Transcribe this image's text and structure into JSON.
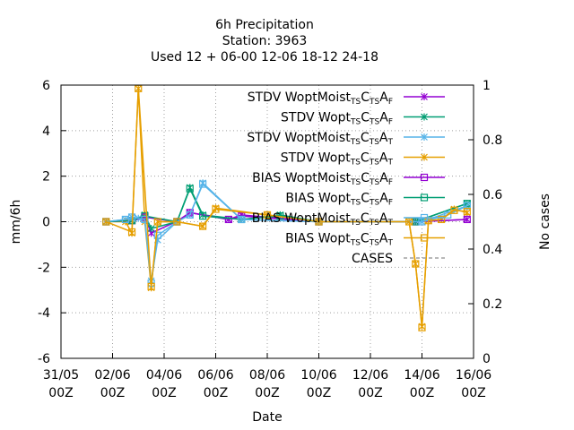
{
  "chart_data": {
    "type": "line",
    "title": [
      "6h Precipitation",
      "Station:     3963",
      "Used  12 + 06-00 12-06 18-12 24-18"
    ],
    "xlabel": "Date",
    "ylabel": "mm/6h",
    "y2label": "No cases",
    "ylim": [
      -6,
      6
    ],
    "y2lim": [
      0,
      1
    ],
    "xlim": [
      "2011-05-31T00:00",
      "2011-06-16T00:00"
    ],
    "x_ticks": [
      {
        "top": "31/05",
        "bottom": "00Z",
        "value": "2011-05-31T00:00"
      },
      {
        "top": "02/06",
        "bottom": "00Z",
        "value": "2011-06-02T00:00"
      },
      {
        "top": "04/06",
        "bottom": "00Z",
        "value": "2011-06-04T00:00"
      },
      {
        "top": "06/06",
        "bottom": "00Z",
        "value": "2011-06-06T00:00"
      },
      {
        "top": "08/06",
        "bottom": "00Z",
        "value": "2011-06-08T00:00"
      },
      {
        "top": "10/06",
        "bottom": "00Z",
        "value": "2011-06-10T00:00"
      },
      {
        "top": "12/06",
        "bottom": "00Z",
        "value": "2011-06-12T00:00"
      },
      {
        "top": "14/06",
        "bottom": "00Z",
        "value": "2011-06-14T00:00"
      },
      {
        "top": "16/06",
        "bottom": "00Z",
        "value": "2011-06-16T00:00"
      }
    ],
    "y_ticks": [
      "6",
      "4",
      "2",
      "0",
      "-2",
      "-4",
      "-6"
    ],
    "y2_ticks": [
      "1",
      "0.8",
      "0.6",
      "0.4",
      "0.2",
      "0"
    ],
    "grid": true,
    "legend_position": "top-right",
    "series": [
      {
        "name": "STDV WoptMoist",
        "sub1": "TS",
        "sub2": "TS",
        "sub3": "F",
        "color": "#9400d3",
        "marker": "x",
        "x": [
          "2011-06-01T18:00",
          "2011-06-02T18:00",
          "2011-06-03T06:00",
          "2011-06-03T12:00",
          "2011-06-04T12:00",
          "2011-06-05T00:00",
          "2011-06-06T12:00",
          "2011-06-07T00:00",
          "2011-06-10T00:00",
          "2011-06-13T18:00",
          "2011-06-15T18:00"
        ],
        "y": [
          0,
          0.05,
          0.2,
          -0.5,
          0.02,
          0.4,
          0.1,
          0.3,
          0,
          0,
          0.1
        ]
      },
      {
        "name": "STDV Wopt",
        "sub1": "TS",
        "sub2": "TS",
        "sub3": "F",
        "color": "#009e73",
        "marker": "x",
        "x": [
          "2011-06-01T18:00",
          "2011-06-02T18:00",
          "2011-06-03T06:00",
          "2011-06-03T12:00",
          "2011-06-04T12:00",
          "2011-06-05T00:00",
          "2011-06-05T12:00",
          "2011-06-07T00:00",
          "2011-06-08T12:00",
          "2011-06-10T00:00",
          "2011-06-13T18:00",
          "2011-06-15T18:00"
        ],
        "y": [
          0,
          0.05,
          0.3,
          -0.3,
          0,
          1.5,
          0.3,
          0.1,
          0.3,
          0,
          0,
          0.8
        ]
      },
      {
        "name": "STDV WoptMoist",
        "sub1": "TS",
        "sub2": "TS",
        "sub3": "T",
        "color": "#56b4e9",
        "marker": "x",
        "x": [
          "2011-06-01T18:00",
          "2011-06-02T12:00",
          "2011-06-02T18:00",
          "2011-06-03T00:00",
          "2011-06-03T06:00",
          "2011-06-03T12:00",
          "2011-06-03T18:00",
          "2011-06-04T12:00",
          "2011-06-05T00:00",
          "2011-06-05T12:00",
          "2011-06-07T00:00",
          "2011-06-10T00:00",
          "2011-06-14T00:00",
          "2011-06-15T18:00"
        ],
        "y": [
          0,
          0.1,
          0.2,
          0.15,
          0.1,
          -2.6,
          -0.8,
          0,
          0.3,
          1.7,
          0.1,
          0,
          0,
          0.7
        ]
      },
      {
        "name": "STDV Wopt",
        "sub1": "TS",
        "sub2": "TS",
        "sub3": "T",
        "color": "#e69f00",
        "marker": "x",
        "x": [
          "2011-06-01T18:00",
          "2011-06-02T12:00",
          "2011-06-02T18:00",
          "2011-06-03T00:00",
          "2011-06-03T06:00",
          "2011-06-03T12:00",
          "2011-06-03T18:00",
          "2011-06-04T12:00",
          "2011-06-05T12:00",
          "2011-06-06T00:00",
          "2011-06-08T00:00",
          "2011-06-10T00:00",
          "2011-06-13T12:00",
          "2011-06-13T18:00",
          "2011-06-14T00:00",
          "2011-06-14T06:00",
          "2011-06-14T18:00",
          "2011-06-15T06:00",
          "2011-06-15T18:00"
        ],
        "y": [
          0,
          0,
          -0.5,
          5.85,
          0,
          -2.9,
          0,
          0,
          -0.2,
          0.6,
          0.3,
          0,
          0,
          -1.85,
          -4.6,
          0.05,
          0.1,
          0.55,
          0.4
        ]
      },
      {
        "name": "BIAS WoptMoist",
        "sub1": "TS",
        "sub2": "TS",
        "sub3": "F",
        "color": "#9400d3",
        "marker": "square",
        "x": [
          "2011-06-01T18:00",
          "2011-06-02T18:00",
          "2011-06-03T06:00",
          "2011-06-04T12:00",
          "2011-06-05T00:00",
          "2011-06-06T12:00",
          "2011-06-07T00:00",
          "2011-06-10T00:00",
          "2011-06-13T18:00",
          "2011-06-15T18:00"
        ],
        "y": [
          0,
          0.05,
          0.2,
          0,
          0.4,
          0.1,
          0.25,
          0,
          0,
          0.1
        ]
      },
      {
        "name": "BIAS Wopt",
        "sub1": "TS",
        "sub2": "TS",
        "sub3": "F",
        "color": "#009e73",
        "marker": "square",
        "x": [
          "2011-06-01T18:00",
          "2011-06-02T18:00",
          "2011-06-03T06:00",
          "2011-06-04T12:00",
          "2011-06-05T00:00",
          "2011-06-05T12:00",
          "2011-06-07T00:00",
          "2011-06-08T12:00",
          "2011-06-10T00:00",
          "2011-06-13T18:00",
          "2011-06-15T18:00"
        ],
        "y": [
          0,
          0.05,
          0.25,
          0,
          1.45,
          0.25,
          0.1,
          0.25,
          0,
          0,
          0.8
        ]
      },
      {
        "name": "BIAS WoptMoist",
        "sub1": "TS",
        "sub2": "TS",
        "sub3": "T",
        "color": "#56b4e9",
        "marker": "square",
        "x": [
          "2011-06-01T18:00",
          "2011-06-02T12:00",
          "2011-06-02T18:00",
          "2011-06-03T06:00",
          "2011-06-03T12:00",
          "2011-06-03T18:00",
          "2011-06-04T12:00",
          "2011-06-05T00:00",
          "2011-06-05T12:00",
          "2011-06-07T00:00",
          "2011-06-10T00:00",
          "2011-06-14T00:00",
          "2011-06-15T00:00",
          "2011-06-15T18:00"
        ],
        "y": [
          0,
          0.1,
          0.2,
          0.1,
          -2.7,
          -0.6,
          0,
          0.3,
          1.65,
          0.1,
          0,
          0,
          0.3,
          0.7
        ]
      },
      {
        "name": "BIAS Wopt",
        "sub1": "TS",
        "sub2": "TS",
        "sub3": "T",
        "color": "#e69f00",
        "marker": "square",
        "x": [
          "2011-06-01T18:00",
          "2011-06-02T18:00",
          "2011-06-03T00:00",
          "2011-06-03T12:00",
          "2011-06-03T18:00",
          "2011-06-04T12:00",
          "2011-06-05T12:00",
          "2011-06-06T00:00",
          "2011-06-08T00:00",
          "2011-06-10T00:00",
          "2011-06-13T12:00",
          "2011-06-13T18:00",
          "2011-06-14T00:00",
          "2011-06-14T06:00",
          "2011-06-14T18:00",
          "2011-06-15T06:00",
          "2011-06-15T18:00"
        ],
        "y": [
          0,
          -0.45,
          5.85,
          -2.85,
          0,
          0,
          -0.2,
          0.55,
          0.3,
          0,
          0,
          -1.85,
          -4.65,
          0.05,
          0.1,
          0.5,
          0.45
        ]
      },
      {
        "name": "CASES",
        "color": "#a0a0a0",
        "marker": "none",
        "dash": true,
        "axis": "y2",
        "x": [],
        "y": []
      }
    ]
  }
}
